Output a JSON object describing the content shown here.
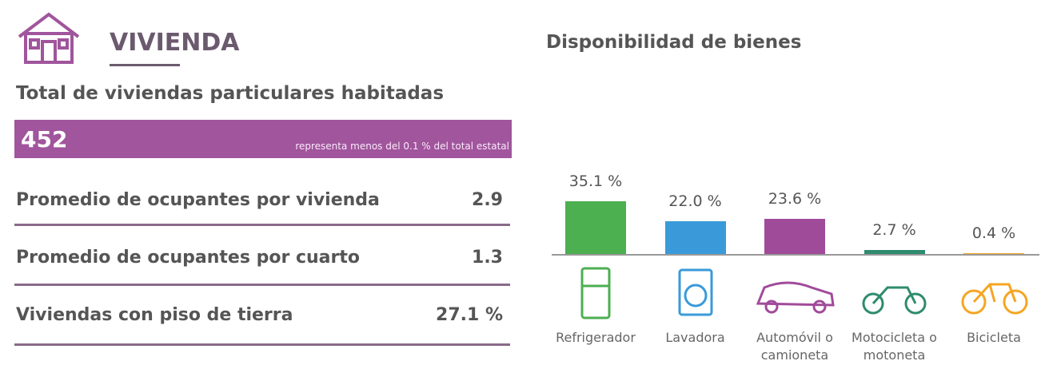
{
  "header": {
    "title": "VIVIENDA"
  },
  "total": {
    "label": "Total de viviendas particulares habitadas",
    "value": "452",
    "note": "representa menos del 0.1 % del total estatal"
  },
  "rows": [
    {
      "label": "Promedio de ocupantes por vivienda",
      "value": "2.9"
    },
    {
      "label": "Promedio de ocupantes por cuarto",
      "value": "1.3"
    },
    {
      "label": "Viviendas con piso de tierra",
      "value": "27.1 %"
    }
  ],
  "chart_data": {
    "type": "bar",
    "title": "Disponibilidad de bienes",
    "categories": [
      "Refrigerador",
      "Lavadora",
      "Automóvil o camioneta",
      "Motocicleta o motoneta",
      "Bicicleta"
    ],
    "values": [
      35.1,
      22.0,
      23.6,
      2.7,
      0.4
    ],
    "value_labels": [
      "35.1 %",
      "22.0 %",
      "23.6 %",
      "2.7 %",
      "0.4 %"
    ],
    "colors": [
      "#4caf50",
      "#3a9ad9",
      "#a04b9a",
      "#2e8b6e",
      "#f5a623"
    ]
  }
}
